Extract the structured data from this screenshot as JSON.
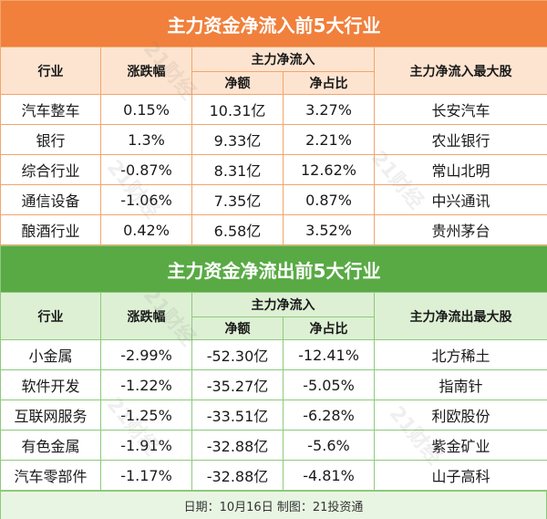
{
  "inflow_table": {
    "title": "主力资金净流入前5大行业",
    "headers": {
      "industry": "行业",
      "change": "涨跌幅",
      "group": "主力净流入",
      "net": "净额",
      "share": "净占比",
      "top_stock": "主力净流入最大股"
    },
    "rows": [
      [
        "汽车整车",
        "0.15%",
        "10.31亿",
        "3.27%",
        "长安汽车"
      ],
      [
        "银行",
        "1.3%",
        "9.33亿",
        "2.21%",
        "农业银行"
      ],
      [
        "综合行业",
        "-0.87%",
        "8.31亿",
        "12.62%",
        "常山北明"
      ],
      [
        "通信设备",
        "-1.06%",
        "7.35亿",
        "0.87%",
        "中兴通讯"
      ],
      [
        "酿酒行业",
        "0.42%",
        "6.58亿",
        "3.52%",
        "贵州茅台"
      ]
    ]
  },
  "outflow_table": {
    "title": "主力资金净流出前5大行业",
    "headers": {
      "industry": "行业",
      "change": "涨跌幅",
      "group": "主力净流入",
      "net": "净额",
      "share": "净占比",
      "top_stock": "主力净流出最大股"
    },
    "rows": [
      [
        "小金属",
        "-2.99%",
        "-52.30亿",
        "-12.41%",
        "北方稀土"
      ],
      [
        "软件开发",
        "-1.22%",
        "-35.27亿",
        "-5.05%",
        "指南针"
      ],
      [
        "互联网服务",
        "-1.25%",
        "-33.51亿",
        "-6.28%",
        "利欧股份"
      ],
      [
        "有色金属",
        "-1.91%",
        "-32.88亿",
        "-5.6%",
        "紫金矿业"
      ],
      [
        "汽车零部件",
        "-1.17%",
        "-32.88亿",
        "-4.81%",
        "山子高科"
      ]
    ]
  },
  "footer": "日期：10月16日 制图：21投资通",
  "watermark": "21财经"
}
